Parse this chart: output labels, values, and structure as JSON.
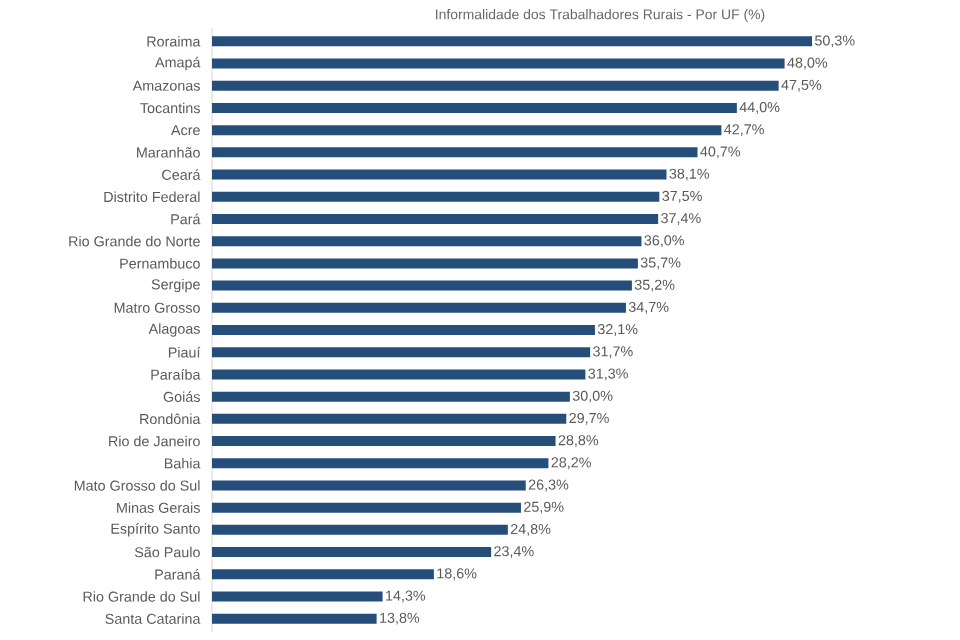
{
  "chart_data": {
    "type": "bar",
    "orientation": "horizontal",
    "title": "Informalidade dos Trabalhadores Rurais - Por UF (%)",
    "categories": [
      "Roraima",
      "Amapá",
      "Amazonas",
      "Tocantins",
      "Acre",
      "Maranhão",
      "Ceará",
      "Distrito Federal",
      "Pará",
      "Rio Grande do Norte",
      "Pernambuco",
      "Sergipe",
      "Matro Grosso",
      "Alagoas",
      "Piauí",
      "Paraíba",
      "Goiás",
      "Rondônia",
      "Rio de Janeiro",
      "Bahia",
      "Mato Grosso do Sul",
      "Minas Gerais",
      "Espírito Santo",
      "São Paulo",
      "Paraná",
      "Rio Grande do Sul",
      "Santa Catarina"
    ],
    "values": [
      50.3,
      48.0,
      47.5,
      44.0,
      42.7,
      40.7,
      38.1,
      37.5,
      37.4,
      36.0,
      35.7,
      35.2,
      34.7,
      32.1,
      31.7,
      31.3,
      30.0,
      29.7,
      28.8,
      28.2,
      26.3,
      25.9,
      24.8,
      23.4,
      18.6,
      14.3,
      13.8
    ],
    "value_labels": [
      "50,3%",
      "48,0%",
      "47,5%",
      "44,0%",
      "42,7%",
      "40,7%",
      "38,1%",
      "37,5%",
      "37,4%",
      "36,0%",
      "35,7%",
      "35,2%",
      "34,7%",
      "32,1%",
      "31,7%",
      "31,3%",
      "30,0%",
      "29,7%",
      "28,8%",
      "28,2%",
      "26,3%",
      "25,9%",
      "24,8%",
      "23,4%",
      "18,6%",
      "14,3%",
      "13,8%"
    ],
    "color": "#254e7b"
  }
}
